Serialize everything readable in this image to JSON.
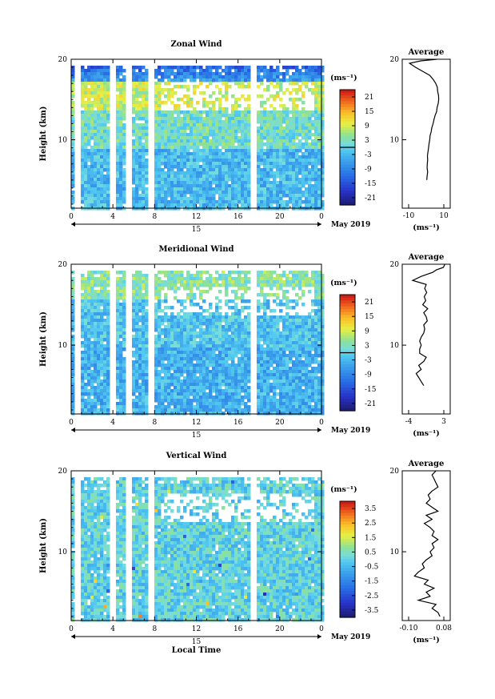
{
  "chart_data": [
    {
      "type": "heatmap",
      "title": "Zonal Wind",
      "ylabel": "Height (km)",
      "unit_label": "(ms⁻¹)",
      "x_ticks": [
        "0",
        "4",
        "8",
        "12",
        "16",
        "20",
        "0"
      ],
      "x_under": "15",
      "date_label": "May 2019",
      "y_ticks": [
        "20",
        "10"
      ],
      "colorbar_ticks": [
        "21",
        "15",
        "9",
        "3",
        "-3",
        "-9",
        "-15",
        "-21"
      ],
      "vmin": -24,
      "vmax": 24,
      "seed": 11,
      "mean_profile": [
        [
          0.3,
          5
        ],
        [
          0.5,
          5.5
        ],
        [
          0.8,
          6
        ],
        [
          0.5,
          6.5
        ],
        [
          0.6,
          7
        ],
        [
          0.8,
          7.5
        ],
        [
          0.7,
          8
        ],
        [
          1,
          8.5
        ],
        [
          1.3,
          9
        ],
        [
          1.6,
          9.5
        ],
        [
          2,
          10
        ],
        [
          2.2,
          10.5
        ],
        [
          2.8,
          11
        ],
        [
          3.2,
          11.5
        ],
        [
          3.9,
          12
        ],
        [
          4.4,
          12.5
        ],
        [
          5,
          13
        ],
        [
          5.9,
          13.5
        ],
        [
          6.2,
          14
        ],
        [
          6.8,
          14.5
        ],
        [
          7.1,
          15
        ],
        [
          7,
          15.5
        ],
        [
          6.5,
          16
        ],
        [
          6.3,
          16.5
        ],
        [
          5.4,
          17
        ],
        [
          3.9,
          17.5
        ],
        [
          2,
          18
        ],
        [
          -2,
          18.5
        ],
        [
          -6,
          19
        ],
        [
          -9.5,
          19.5
        ],
        [
          -3,
          19.8
        ],
        [
          6,
          20
        ]
      ]
    },
    {
      "type": "heatmap",
      "title": "Meridional Wind",
      "ylabel": "Height (km)",
      "unit_label": "(ms⁻¹)",
      "x_ticks": [
        "0",
        "4",
        "8",
        "12",
        "16",
        "20",
        "0"
      ],
      "x_under": "15",
      "date_label": "May 2019",
      "y_ticks": [
        "20",
        "10"
      ],
      "colorbar_ticks": [
        "21",
        "15",
        "9",
        "3",
        "-3",
        "-9",
        "-15",
        "-21"
      ],
      "vmin": -24,
      "vmax": 24,
      "seed": 37,
      "mean_profile": [
        [
          -1,
          5
        ],
        [
          -1.5,
          5.5
        ],
        [
          -2,
          6
        ],
        [
          -2.5,
          6.5
        ],
        [
          -1.5,
          7
        ],
        [
          -2,
          7.5
        ],
        [
          -1,
          8
        ],
        [
          -0.5,
          8.5
        ],
        [
          -1.8,
          9
        ],
        [
          -1.8,
          9.5
        ],
        [
          -1.5,
          10
        ],
        [
          -1.8,
          10.5
        ],
        [
          -1.5,
          11
        ],
        [
          -1,
          11.5
        ],
        [
          -0.8,
          12
        ],
        [
          -1,
          12.5
        ],
        [
          -0.3,
          13
        ],
        [
          -0.5,
          13.5
        ],
        [
          -1,
          14
        ],
        [
          -0.2,
          14.5
        ],
        [
          -1.2,
          15
        ],
        [
          -0.6,
          15.5
        ],
        [
          -0.9,
          16
        ],
        [
          -0.4,
          16.5
        ],
        [
          -0.8,
          17
        ],
        [
          -0.5,
          17.5
        ],
        [
          -3.2,
          18
        ],
        [
          -1.5,
          18.5
        ],
        [
          0.8,
          19
        ],
        [
          1.5,
          19.3
        ],
        [
          2.9,
          19.6
        ],
        [
          3.2,
          20
        ]
      ]
    },
    {
      "type": "heatmap",
      "title": "Vertical Wind",
      "ylabel": "Height (km)",
      "xlabel": "Local Time",
      "unit_label": "(ms⁻¹)",
      "x_ticks": [
        "0",
        "4",
        "8",
        "12",
        "16",
        "20",
        "0"
      ],
      "x_under": "15",
      "date_label": "May 2019",
      "y_ticks": [
        "20",
        "10"
      ],
      "colorbar_ticks": [
        "3.5",
        "2.5",
        "1.5",
        "0.5",
        "-0.5",
        "-1.5",
        "-2.5",
        "-3.5"
      ],
      "vmin": -4,
      "vmax": 4,
      "seed": 73,
      "mean_profile_ticks": [
        "-0.10",
        "0.08"
      ],
      "mean_profile": [
        [
          0.06,
          2
        ],
        [
          0.05,
          2.5
        ],
        [
          0.02,
          3
        ],
        [
          0.04,
          3.5
        ],
        [
          -0.05,
          4
        ],
        [
          0.01,
          4.5
        ],
        [
          -0.01,
          5
        ],
        [
          0.03,
          5.5
        ],
        [
          -0.02,
          6
        ],
        [
          0.0,
          6.5
        ],
        [
          -0.07,
          7
        ],
        [
          -0.05,
          7.5
        ],
        [
          -0.02,
          8
        ],
        [
          -0.03,
          8.5
        ],
        [
          -0.01,
          9
        ],
        [
          0.02,
          9.5
        ],
        [
          0.01,
          10
        ],
        [
          0.03,
          10.5
        ],
        [
          0.02,
          11
        ],
        [
          0.05,
          11.5
        ],
        [
          0.02,
          12
        ],
        [
          0.03,
          12.5
        ],
        [
          0.01,
          13
        ],
        [
          -0.02,
          13.5
        ],
        [
          0.02,
          14
        ],
        [
          -0.01,
          14.5
        ],
        [
          0.05,
          15
        ],
        [
          0.02,
          15.5
        ],
        [
          -0.01,
          16
        ],
        [
          0.01,
          16.5
        ],
        [
          0.0,
          17
        ],
        [
          0.02,
          17.5
        ],
        [
          0.05,
          18
        ],
        [
          0.04,
          18.5
        ],
        [
          0.03,
          19
        ],
        [
          0.02,
          19.5
        ],
        [
          0.04,
          20
        ]
      ]
    }
  ],
  "average_title": "Average",
  "average_unit": "(ms⁻¹)",
  "avg_ticks": [
    [
      "-10",
      "10"
    ],
    [
      "-4",
      "3"
    ],
    [
      "-0.10",
      "0.08"
    ]
  ]
}
